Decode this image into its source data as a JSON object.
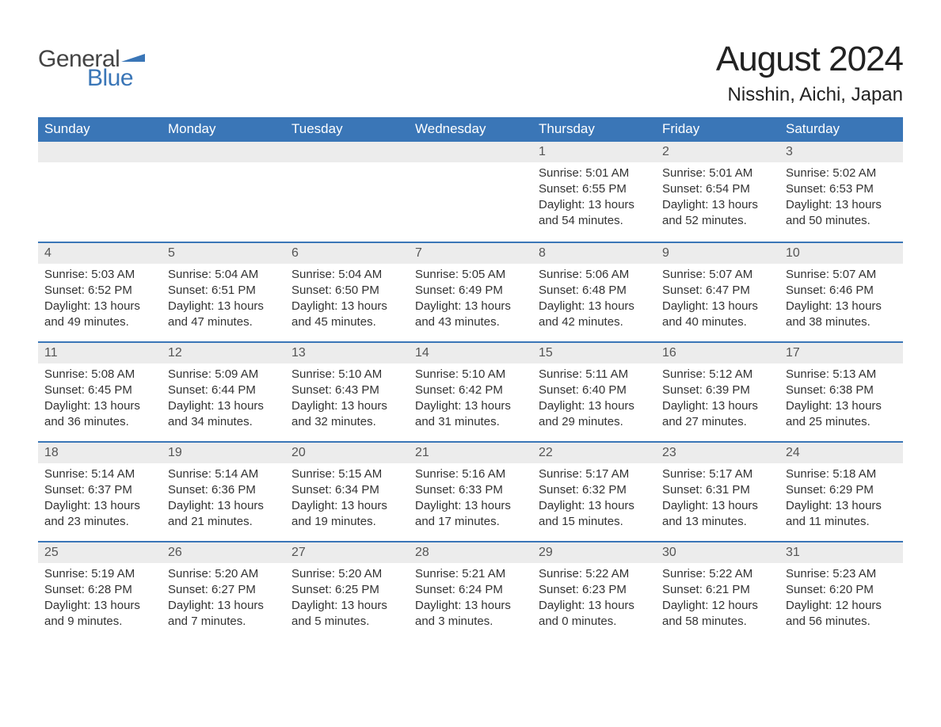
{
  "logo": {
    "word1": "General",
    "word2": "Blue",
    "flag_color": "#3a76b7",
    "text_color_1": "#444444",
    "text_color_2": "#3a76b7"
  },
  "title": "August 2024",
  "subtitle": "Nisshin, Aichi, Japan",
  "colors": {
    "header_bg": "#3a76b7",
    "header_text": "#ffffff",
    "daynum_bg": "#ececec",
    "daynum_text": "#555555",
    "body_text": "#333333",
    "week_divider": "#3a76b7",
    "page_bg": "#ffffff"
  },
  "fonts": {
    "title_size_pt": 33,
    "subtitle_size_pt": 18,
    "weekday_size_pt": 13,
    "daynum_size_pt": 12,
    "body_size_pt": 11
  },
  "weekdays": [
    "Sunday",
    "Monday",
    "Tuesday",
    "Wednesday",
    "Thursday",
    "Friday",
    "Saturday"
  ],
  "weeks": [
    [
      {
        "empty": true
      },
      {
        "empty": true
      },
      {
        "empty": true
      },
      {
        "empty": true
      },
      {
        "day": "1",
        "sunrise": "Sunrise: 5:01 AM",
        "sunset": "Sunset: 6:55 PM",
        "daylight1": "Daylight: 13 hours",
        "daylight2": "and 54 minutes."
      },
      {
        "day": "2",
        "sunrise": "Sunrise: 5:01 AM",
        "sunset": "Sunset: 6:54 PM",
        "daylight1": "Daylight: 13 hours",
        "daylight2": "and 52 minutes."
      },
      {
        "day": "3",
        "sunrise": "Sunrise: 5:02 AM",
        "sunset": "Sunset: 6:53 PM",
        "daylight1": "Daylight: 13 hours",
        "daylight2": "and 50 minutes."
      }
    ],
    [
      {
        "day": "4",
        "sunrise": "Sunrise: 5:03 AM",
        "sunset": "Sunset: 6:52 PM",
        "daylight1": "Daylight: 13 hours",
        "daylight2": "and 49 minutes."
      },
      {
        "day": "5",
        "sunrise": "Sunrise: 5:04 AM",
        "sunset": "Sunset: 6:51 PM",
        "daylight1": "Daylight: 13 hours",
        "daylight2": "and 47 minutes."
      },
      {
        "day": "6",
        "sunrise": "Sunrise: 5:04 AM",
        "sunset": "Sunset: 6:50 PM",
        "daylight1": "Daylight: 13 hours",
        "daylight2": "and 45 minutes."
      },
      {
        "day": "7",
        "sunrise": "Sunrise: 5:05 AM",
        "sunset": "Sunset: 6:49 PM",
        "daylight1": "Daylight: 13 hours",
        "daylight2": "and 43 minutes."
      },
      {
        "day": "8",
        "sunrise": "Sunrise: 5:06 AM",
        "sunset": "Sunset: 6:48 PM",
        "daylight1": "Daylight: 13 hours",
        "daylight2": "and 42 minutes."
      },
      {
        "day": "9",
        "sunrise": "Sunrise: 5:07 AM",
        "sunset": "Sunset: 6:47 PM",
        "daylight1": "Daylight: 13 hours",
        "daylight2": "and 40 minutes."
      },
      {
        "day": "10",
        "sunrise": "Sunrise: 5:07 AM",
        "sunset": "Sunset: 6:46 PM",
        "daylight1": "Daylight: 13 hours",
        "daylight2": "and 38 minutes."
      }
    ],
    [
      {
        "day": "11",
        "sunrise": "Sunrise: 5:08 AM",
        "sunset": "Sunset: 6:45 PM",
        "daylight1": "Daylight: 13 hours",
        "daylight2": "and 36 minutes."
      },
      {
        "day": "12",
        "sunrise": "Sunrise: 5:09 AM",
        "sunset": "Sunset: 6:44 PM",
        "daylight1": "Daylight: 13 hours",
        "daylight2": "and 34 minutes."
      },
      {
        "day": "13",
        "sunrise": "Sunrise: 5:10 AM",
        "sunset": "Sunset: 6:43 PM",
        "daylight1": "Daylight: 13 hours",
        "daylight2": "and 32 minutes."
      },
      {
        "day": "14",
        "sunrise": "Sunrise: 5:10 AM",
        "sunset": "Sunset: 6:42 PM",
        "daylight1": "Daylight: 13 hours",
        "daylight2": "and 31 minutes."
      },
      {
        "day": "15",
        "sunrise": "Sunrise: 5:11 AM",
        "sunset": "Sunset: 6:40 PM",
        "daylight1": "Daylight: 13 hours",
        "daylight2": "and 29 minutes."
      },
      {
        "day": "16",
        "sunrise": "Sunrise: 5:12 AM",
        "sunset": "Sunset: 6:39 PM",
        "daylight1": "Daylight: 13 hours",
        "daylight2": "and 27 minutes."
      },
      {
        "day": "17",
        "sunrise": "Sunrise: 5:13 AM",
        "sunset": "Sunset: 6:38 PM",
        "daylight1": "Daylight: 13 hours",
        "daylight2": "and 25 minutes."
      }
    ],
    [
      {
        "day": "18",
        "sunrise": "Sunrise: 5:14 AM",
        "sunset": "Sunset: 6:37 PM",
        "daylight1": "Daylight: 13 hours",
        "daylight2": "and 23 minutes."
      },
      {
        "day": "19",
        "sunrise": "Sunrise: 5:14 AM",
        "sunset": "Sunset: 6:36 PM",
        "daylight1": "Daylight: 13 hours",
        "daylight2": "and 21 minutes."
      },
      {
        "day": "20",
        "sunrise": "Sunrise: 5:15 AM",
        "sunset": "Sunset: 6:34 PM",
        "daylight1": "Daylight: 13 hours",
        "daylight2": "and 19 minutes."
      },
      {
        "day": "21",
        "sunrise": "Sunrise: 5:16 AM",
        "sunset": "Sunset: 6:33 PM",
        "daylight1": "Daylight: 13 hours",
        "daylight2": "and 17 minutes."
      },
      {
        "day": "22",
        "sunrise": "Sunrise: 5:17 AM",
        "sunset": "Sunset: 6:32 PM",
        "daylight1": "Daylight: 13 hours",
        "daylight2": "and 15 minutes."
      },
      {
        "day": "23",
        "sunrise": "Sunrise: 5:17 AM",
        "sunset": "Sunset: 6:31 PM",
        "daylight1": "Daylight: 13 hours",
        "daylight2": "and 13 minutes."
      },
      {
        "day": "24",
        "sunrise": "Sunrise: 5:18 AM",
        "sunset": "Sunset: 6:29 PM",
        "daylight1": "Daylight: 13 hours",
        "daylight2": "and 11 minutes."
      }
    ],
    [
      {
        "day": "25",
        "sunrise": "Sunrise: 5:19 AM",
        "sunset": "Sunset: 6:28 PM",
        "daylight1": "Daylight: 13 hours",
        "daylight2": "and 9 minutes."
      },
      {
        "day": "26",
        "sunrise": "Sunrise: 5:20 AM",
        "sunset": "Sunset: 6:27 PM",
        "daylight1": "Daylight: 13 hours",
        "daylight2": "and 7 minutes."
      },
      {
        "day": "27",
        "sunrise": "Sunrise: 5:20 AM",
        "sunset": "Sunset: 6:25 PM",
        "daylight1": "Daylight: 13 hours",
        "daylight2": "and 5 minutes."
      },
      {
        "day": "28",
        "sunrise": "Sunrise: 5:21 AM",
        "sunset": "Sunset: 6:24 PM",
        "daylight1": "Daylight: 13 hours",
        "daylight2": "and 3 minutes."
      },
      {
        "day": "29",
        "sunrise": "Sunrise: 5:22 AM",
        "sunset": "Sunset: 6:23 PM",
        "daylight1": "Daylight: 13 hours",
        "daylight2": "and 0 minutes."
      },
      {
        "day": "30",
        "sunrise": "Sunrise: 5:22 AM",
        "sunset": "Sunset: 6:21 PM",
        "daylight1": "Daylight: 12 hours",
        "daylight2": "and 58 minutes."
      },
      {
        "day": "31",
        "sunrise": "Sunrise: 5:23 AM",
        "sunset": "Sunset: 6:20 PM",
        "daylight1": "Daylight: 12 hours",
        "daylight2": "and 56 minutes."
      }
    ]
  ]
}
